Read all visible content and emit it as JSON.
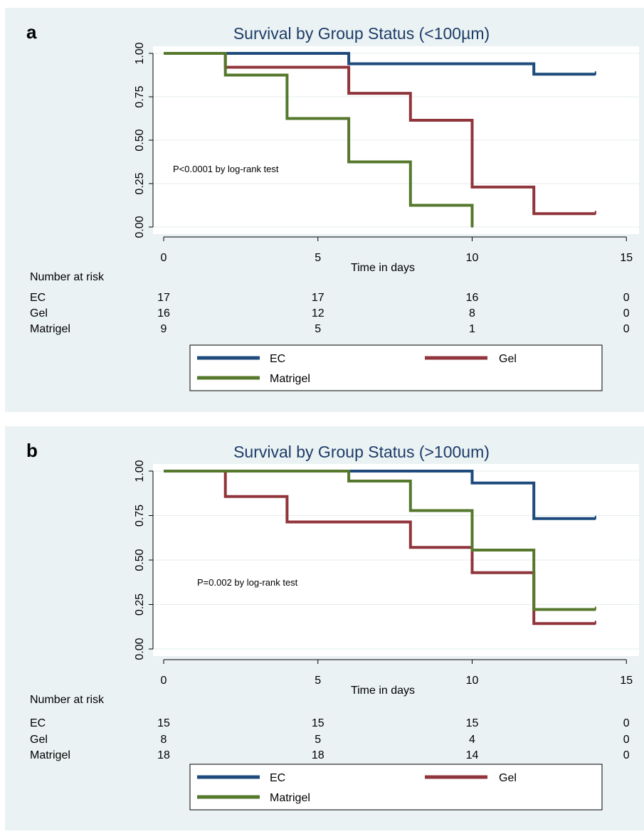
{
  "colors": {
    "EC": "#1e4b7c",
    "Gel": "#90353b",
    "Matrigel": "#55782d",
    "title": "#1d3c68"
  },
  "chart_data": [
    {
      "panel_label": "a",
      "type": "line",
      "step": true,
      "title": "Survival by Group Status (<100µm)",
      "xlabel": "Time in days",
      "ylabel": "",
      "xlim": [
        0,
        15
      ],
      "ylim": [
        0,
        1
      ],
      "x_ticks": [
        "0",
        "5",
        "10",
        "15"
      ],
      "y_ticks": [
        "0.00",
        "0.25",
        "0.50",
        "0.75",
        "1.00"
      ],
      "grid": true,
      "annotation": "P<0.0001 by log-rank test",
      "series": [
        {
          "name": "EC",
          "x": [
            0,
            6,
            12,
            14
          ],
          "y": [
            1.0,
            0.94,
            0.88,
            0.88
          ]
        },
        {
          "name": "Gel",
          "x": [
            0,
            2,
            6,
            8,
            10,
            12,
            14
          ],
          "y": [
            1.0,
            0.92,
            0.77,
            0.615,
            0.23,
            0.077,
            0.077
          ]
        },
        {
          "name": "Matrigel",
          "x": [
            0,
            2,
            4,
            6,
            8,
            10
          ],
          "y": [
            1.0,
            0.875,
            0.625,
            0.375,
            0.125,
            0.0
          ]
        }
      ],
      "risk_table": {
        "title": "Number at risk",
        "times": [
          0,
          5,
          10,
          15
        ],
        "rows": [
          {
            "name": "EC",
            "values": [
              "17",
              "17",
              "16",
              "0"
            ]
          },
          {
            "name": "Gel",
            "values": [
              "16",
              "12",
              "8",
              "0"
            ]
          },
          {
            "name": "Matrigel",
            "values": [
              "9",
              "5",
              "1",
              "0"
            ]
          }
        ]
      },
      "legend": [
        "EC",
        "Gel",
        "Matrigel"
      ]
    },
    {
      "panel_label": "b",
      "type": "line",
      "step": true,
      "title": "Survival by Group Status (>100um)",
      "xlabel": "Time in days",
      "ylabel": "",
      "xlim": [
        0,
        15
      ],
      "ylim": [
        0,
        1
      ],
      "x_ticks": [
        "0",
        "5",
        "10",
        "15"
      ],
      "y_ticks": [
        "0.00",
        "0.25",
        "0.50",
        "0.75",
        "1.00"
      ],
      "grid": true,
      "annotation": "P=0.002 by log-rank test",
      "series": [
        {
          "name": "EC",
          "x": [
            0,
            10,
            12,
            14
          ],
          "y": [
            1.0,
            0.933,
            0.733,
            0.733
          ]
        },
        {
          "name": "Gel",
          "x": [
            0,
            2,
            4,
            8,
            10,
            12,
            14
          ],
          "y": [
            1.0,
            0.857,
            0.714,
            0.571,
            0.429,
            0.143,
            0.143
          ]
        },
        {
          "name": "Matrigel",
          "x": [
            0,
            6,
            8,
            10,
            12,
            14
          ],
          "y": [
            1.0,
            0.944,
            0.778,
            0.556,
            0.222,
            0.222
          ]
        }
      ],
      "risk_table": {
        "title": "Number at risk",
        "times": [
          0,
          5,
          10,
          15
        ],
        "rows": [
          {
            "name": "EC",
            "values": [
              "15",
              "15",
              "15",
              "0"
            ]
          },
          {
            "name": "Gel",
            "values": [
              "8",
              "5",
              "4",
              "0"
            ]
          },
          {
            "name": "Matrigel",
            "values": [
              "18",
              "18",
              "14",
              "0"
            ]
          }
        ]
      },
      "legend": [
        "EC",
        "Gel",
        "Matrigel"
      ]
    }
  ]
}
